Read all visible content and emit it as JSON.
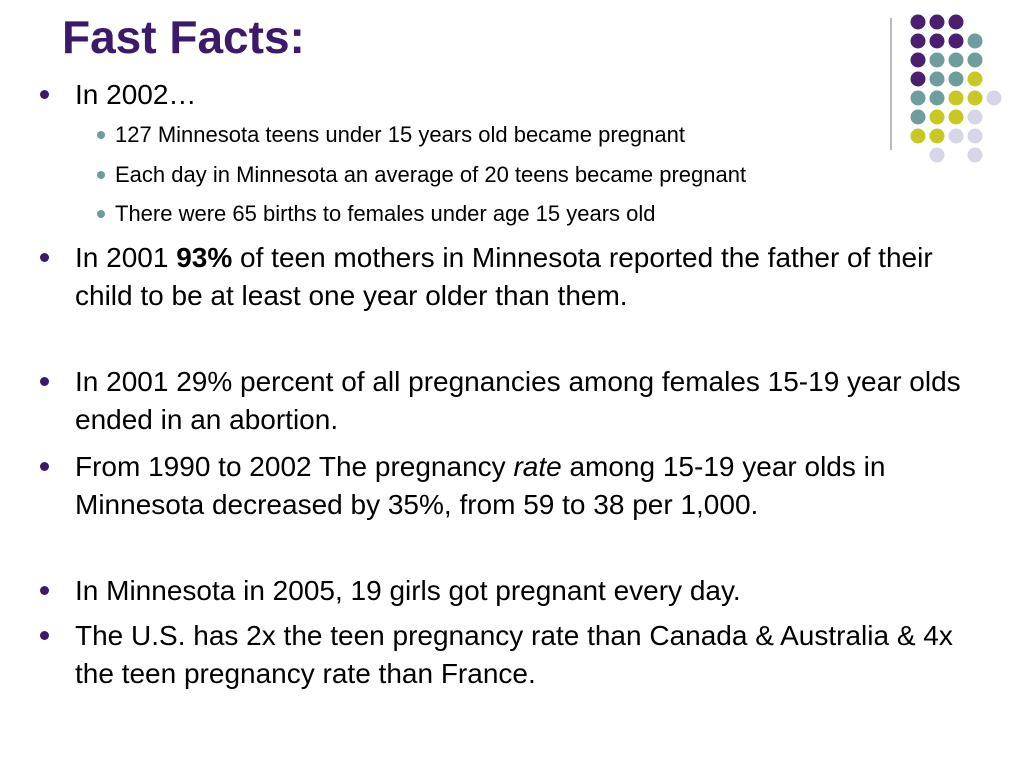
{
  "title": "Fast Facts:",
  "bullets": [
    {
      "runs": [
        {
          "text": "In 2002…"
        }
      ],
      "sub": [
        "127 Minnesota teens under 15 years old became pregnant",
        "Each day in Minnesota an average of 20 teens became pregnant",
        "There were 65 births to females under age 15 years old"
      ]
    },
    {
      "runs": [
        {
          "text": "In 2001 "
        },
        {
          "text": "93%",
          "bold": true
        },
        {
          "text": " of teen mothers in Minnesota reported the father of their child to be at least one year older than them."
        }
      ]
    },
    {
      "runs": [
        {
          "text": "In 2001 29% percent of all pregnancies among females 15-19 year olds ended in an abortion."
        }
      ]
    },
    {
      "runs": [
        {
          "text": "From 1990 to 2002 The pregnancy "
        },
        {
          "text": "rate",
          "italic": true
        },
        {
          "text": " among 15-19 year olds in Minnesota decreased by 35%, from 59 to 38 per 1,000."
        }
      ]
    },
    {
      "runs": [
        {
          "text": "In Minnesota in 2005, 19 girls got pregnant every day."
        }
      ]
    },
    {
      "runs": [
        {
          "text": "The U.S. has 2x the teen pregnancy rate than Canada & Australia & 4x the teen pregnancy rate than France."
        }
      ]
    }
  ]
}
